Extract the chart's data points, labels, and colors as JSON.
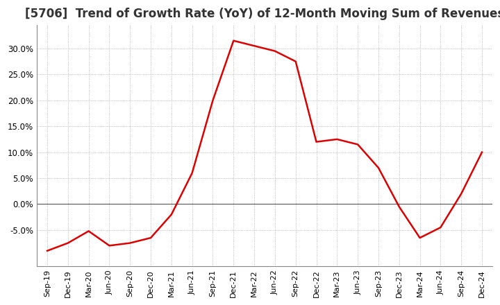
{
  "title": "[5706]  Trend of Growth Rate (YoY) of 12-Month Moving Sum of Revenues",
  "title_fontsize": 12,
  "line_color": "#dd0000",
  "background_color": "#ffffff",
  "plot_bg_color": "#ffffff",
  "grid_color": "#aaaaaa",
  "zero_line_color": "#555555",
  "ylim": [
    -0.12,
    0.345
  ],
  "yticks": [
    -0.05,
    0.0,
    0.05,
    0.1,
    0.15,
    0.2,
    0.25,
    0.3
  ],
  "x_labels": [
    "Sep-19",
    "Dec-19",
    "Mar-20",
    "Jun-20",
    "Sep-20",
    "Dec-20",
    "Mar-21",
    "Jun-21",
    "Sep-21",
    "Dec-21",
    "Mar-22",
    "Jun-22",
    "Sep-22",
    "Dec-22",
    "Mar-23",
    "Jun-23",
    "Sep-23",
    "Dec-23",
    "Mar-24",
    "Jun-24",
    "Sep-24",
    "Dec-24"
  ],
  "y_values": [
    -0.09,
    -0.075,
    -0.052,
    -0.08,
    -0.075,
    -0.065,
    -0.02,
    0.06,
    0.2,
    0.315,
    0.305,
    0.295,
    0.275,
    0.12,
    0.125,
    0.115,
    0.07,
    -0.005,
    -0.065,
    -0.045,
    0.02,
    0.1
  ]
}
